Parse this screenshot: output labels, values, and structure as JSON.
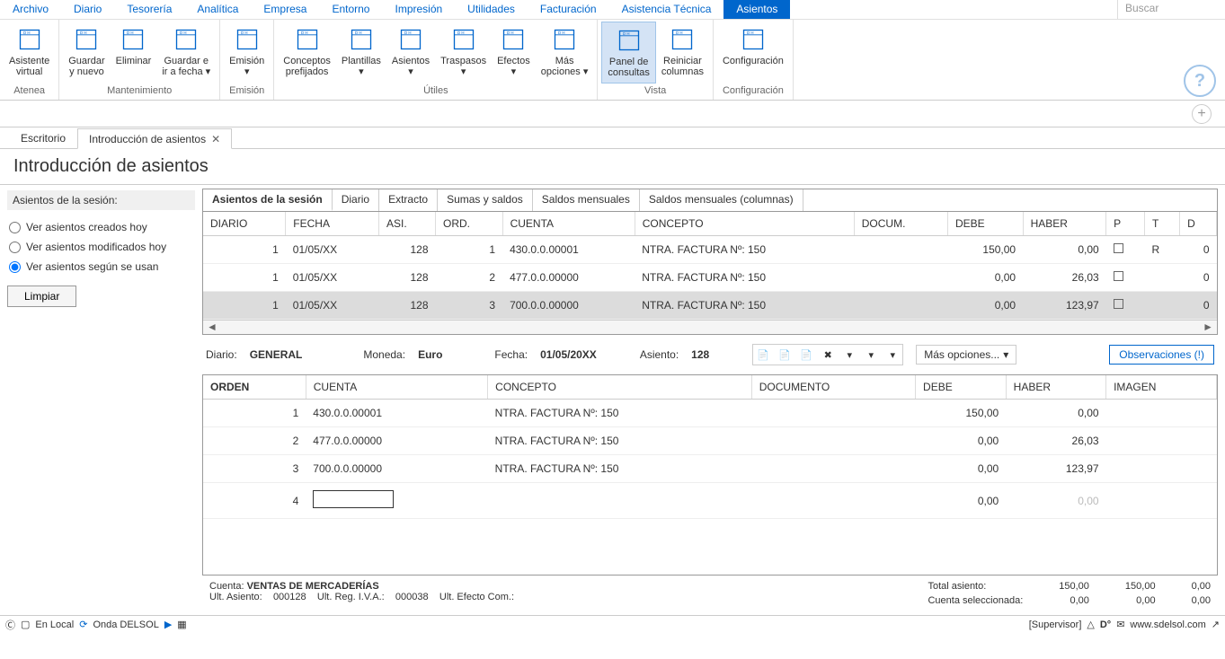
{
  "menu": [
    "Archivo",
    "Diario",
    "Tesorería",
    "Analítica",
    "Empresa",
    "Entorno",
    "Impresión",
    "Utilidades",
    "Facturación",
    "Asistencia Técnica",
    "Asientos"
  ],
  "menu_active": 10,
  "search_placeholder": "Buscar",
  "ribbon_groups": [
    {
      "label": "Atenea",
      "buttons": [
        {
          "name": "asistente-virtual",
          "label": "Asistente\nvirtual"
        }
      ]
    },
    {
      "label": "Mantenimiento",
      "buttons": [
        {
          "name": "guardar-nuevo",
          "label": "Guardar\ny nuevo"
        },
        {
          "name": "eliminar",
          "label": "Eliminar"
        },
        {
          "name": "guardar-ir-fecha",
          "label": "Guardar e\nir a fecha ▾"
        }
      ]
    },
    {
      "label": "Emisión",
      "buttons": [
        {
          "name": "emision",
          "label": "Emisión\n▾"
        }
      ]
    },
    {
      "label": "Útiles",
      "buttons": [
        {
          "name": "conceptos",
          "label": "Conceptos\nprefijados"
        },
        {
          "name": "plantillas",
          "label": "Plantillas\n▾"
        },
        {
          "name": "asientos",
          "label": "Asientos\n▾"
        },
        {
          "name": "traspasos",
          "label": "Traspasos\n▾"
        },
        {
          "name": "efectos",
          "label": "Efectos\n▾"
        },
        {
          "name": "mas-opciones",
          "label": "Más\nopciones ▾"
        }
      ]
    },
    {
      "label": "Vista",
      "buttons": [
        {
          "name": "panel-consultas",
          "label": "Panel de\nconsultas",
          "active": true
        },
        {
          "name": "reiniciar-cols",
          "label": "Reiniciar\ncolumnas"
        }
      ]
    },
    {
      "label": "Configuración",
      "buttons": [
        {
          "name": "configuracion",
          "label": "Configuración"
        }
      ]
    }
  ],
  "doc_tabs": [
    {
      "label": "Escritorio",
      "active": false
    },
    {
      "label": "Introducción de asientos",
      "active": true,
      "closable": true
    }
  ],
  "page_title": "Introducción de asientos",
  "sidebar": {
    "title": "Asientos de la sesión:",
    "options": [
      {
        "label": "Ver asientos creados hoy",
        "checked": false
      },
      {
        "label": "Ver asientos modificados hoy",
        "checked": false
      },
      {
        "label": "Ver asientos según se usan",
        "checked": true
      }
    ],
    "clear": "Limpiar"
  },
  "inner_tabs": [
    "Asientos de la sesión",
    "Diario",
    "Extracto",
    "Sumas y saldos",
    "Saldos mensuales",
    "Saldos mensuales (columnas)"
  ],
  "inner_tab_active": 0,
  "grid1": {
    "cols": [
      "DIARIO",
      "FECHA",
      "ASI.",
      "ORD.",
      "CUENTA",
      "CONCEPTO",
      "DOCUM.",
      "DEBE",
      "HABER",
      "P",
      "T",
      "D"
    ],
    "rows": [
      {
        "diario": "1",
        "fecha": "01/05/XX",
        "asi": "128",
        "ord": "1",
        "cuenta": "430.0.0.00001",
        "concepto": "NTRA. FACTURA Nº:  150",
        "docum": "",
        "debe": "150,00",
        "haber": "0,00",
        "p": "☐",
        "t": "R",
        "d": "0"
      },
      {
        "diario": "1",
        "fecha": "01/05/XX",
        "asi": "128",
        "ord": "2",
        "cuenta": "477.0.0.00000",
        "concepto": "NTRA. FACTURA Nº:  150",
        "docum": "",
        "debe": "0,00",
        "haber": "26,03",
        "p": "☐",
        "t": "",
        "d": "0"
      },
      {
        "diario": "1",
        "fecha": "01/05/XX",
        "asi": "128",
        "ord": "3",
        "cuenta": "700.0.0.00000",
        "concepto": "NTRA. FACTURA Nº:  150",
        "docum": "",
        "debe": "0,00",
        "haber": "123,97",
        "p": "☐",
        "t": "",
        "d": "0",
        "sel": true
      }
    ]
  },
  "info": {
    "diario_lbl": "Diario:",
    "diario_val": "GENERAL",
    "moneda_lbl": "Moneda:",
    "moneda_val": "Euro",
    "fecha_lbl": "Fecha:",
    "fecha_val": "01/05/20XX",
    "asiento_lbl": "Asiento:",
    "asiento_val": "128",
    "more": "Más opciones...",
    "obs": "Observaciones (!)"
  },
  "grid2": {
    "cols": [
      "ORDEN",
      "CUENTA",
      "CONCEPTO",
      "DOCUMENTO",
      "DEBE",
      "HABER",
      "IMAGEN"
    ],
    "rows": [
      {
        "orden": "1",
        "cuenta": "430.0.0.00001",
        "concepto": "NTRA. FACTURA Nº:  150",
        "documento": "",
        "debe": "150,00",
        "haber": "0,00"
      },
      {
        "orden": "2",
        "cuenta": "477.0.0.00000",
        "concepto": "NTRA. FACTURA Nº:  150",
        "documento": "",
        "debe": "0,00",
        "haber": "26,03"
      },
      {
        "orden": "3",
        "cuenta": "700.0.0.00000",
        "concepto": "NTRA. FACTURA Nº:  150",
        "documento": "",
        "debe": "0,00",
        "haber": "123,97"
      },
      {
        "orden": "4",
        "cuenta": "",
        "concepto": "",
        "documento": "",
        "debe": "0,00",
        "haber": "0,00",
        "editing": true,
        "faded_haber": true
      }
    ]
  },
  "summary": {
    "cuenta_lbl": "Cuenta:",
    "cuenta_val": "VENTAS DE MERCADERÍAS",
    "ult_asiento_lbl": "Ult. Asiento:",
    "ult_asiento_val": "000128",
    "ult_reg_lbl": "Ult. Reg. I.V.A.:",
    "ult_reg_val": "000038",
    "ult_efecto_lbl": "Ult. Efecto Com.:",
    "total_lbl": "Total asiento:",
    "sel_lbl": "Cuenta seleccionada:",
    "t_debe": "150,00",
    "t_haber": "150,00",
    "t_saldo": "0,00",
    "s_debe": "0,00",
    "s_haber": "0,00",
    "s_saldo": "0,00"
  },
  "status": {
    "local": "En Local",
    "onda": "Onda DELSOL",
    "supervisor": "[Supervisor]",
    "url": "www.sdelsol.com"
  },
  "colors": {
    "accent": "#0066cc",
    "sel": "#dcdcdc",
    "ribbon_active": "#d4e3f5"
  }
}
